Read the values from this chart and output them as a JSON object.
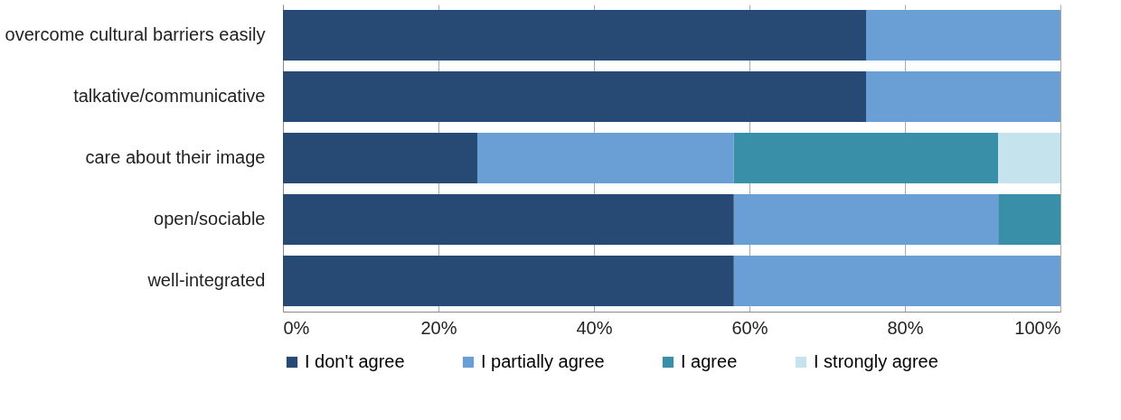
{
  "chart_data": {
    "type": "bar",
    "orientation": "horizontal",
    "stacked": true,
    "categories": [
      "overcome cultural barriers easily",
      "talkative/communicative",
      "care about their image",
      "open/sociable",
      "well-integrated"
    ],
    "series": [
      {
        "name": "I don't agree",
        "color": "#264a73",
        "values": [
          75,
          75,
          25,
          58,
          58
        ]
      },
      {
        "name": "I partially agree",
        "color": "#6a9fd6",
        "values": [
          25,
          25,
          33,
          34,
          42
        ]
      },
      {
        "name": "I agree",
        "color": "#3a8fa8",
        "values": [
          0,
          0,
          34,
          8,
          0
        ]
      },
      {
        "name": "I strongly agree",
        "color": "#c5e3ec",
        "values": [
          0,
          0,
          8,
          0,
          0
        ]
      }
    ],
    "xlim": [
      0,
      100
    ],
    "xticks": [
      {
        "value": 0,
        "label": "0%"
      },
      {
        "value": 20,
        "label": "20%"
      },
      {
        "value": 40,
        "label": "40%"
      },
      {
        "value": 60,
        "label": "60%"
      },
      {
        "value": 80,
        "label": "80%"
      },
      {
        "value": 100,
        "label": "100%"
      }
    ],
    "grid": "x",
    "legend": "bottom"
  }
}
